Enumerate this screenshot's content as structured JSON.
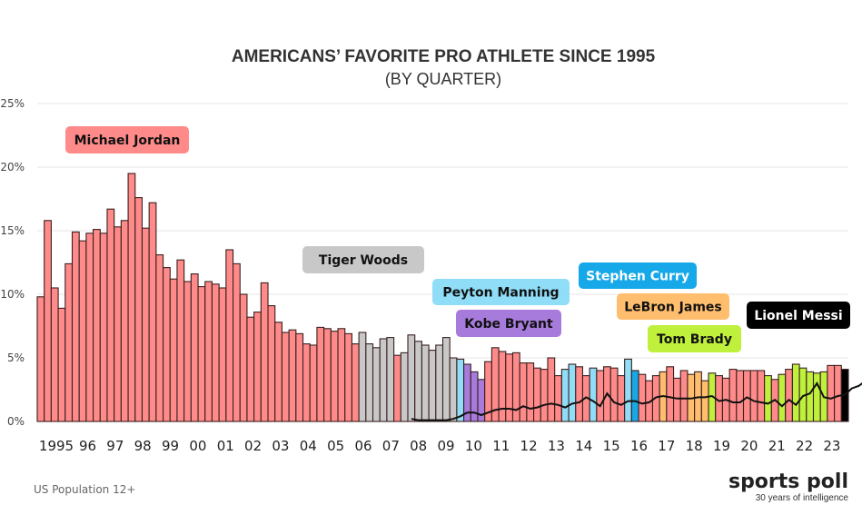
{
  "chart_data": {
    "type": "bar",
    "title": "AMERICANS’ FAVORITE PRO ATHLETE SINCE 1995",
    "subtitle": "(BY QUARTER)",
    "xlabel": "",
    "ylabel": "",
    "ylim": [
      0,
      25
    ],
    "y_ticks": [
      "0%",
      "5%",
      "10%",
      "15%",
      "20%",
      "25%"
    ],
    "y_tick_values": [
      0,
      5,
      10,
      15,
      20,
      25
    ],
    "grid": true,
    "x_tick_labels": [
      "1995",
      "96",
      "97",
      "98",
      "99",
      "00",
      "01",
      "02",
      "03",
      "04",
      "05",
      "06",
      "07",
      "08",
      "09",
      "10",
      "11",
      "12",
      "13",
      "14",
      "15",
      "16",
      "17",
      "18",
      "19",
      "20",
      "21",
      "22",
      "23"
    ],
    "athletes": {
      "MJ": {
        "name": "Michael Jordan",
        "color": "#FF8A8A",
        "text_color": "#111111"
      },
      "TW": {
        "name": "Tiger Woods",
        "color": "#C8C8C8",
        "text_color": "#111111"
      },
      "PM": {
        "name": "Peyton Manning",
        "color": "#8FDDF7",
        "text_color": "#111111"
      },
      "KB": {
        "name": "Kobe Bryant",
        "color": "#A77BDB",
        "text_color": "#111111"
      },
      "SC": {
        "name": "Stephen Curry",
        "color": "#16A8E8",
        "text_color": "#ffffff"
      },
      "LJ": {
        "name": "LeBron James",
        "color": "#FFBE6E",
        "text_color": "#111111"
      },
      "TB": {
        "name": "Tom Brady",
        "color": "#BEF03C",
        "text_color": "#111111"
      },
      "LM": {
        "name": "Lionel Messi",
        "color": "#000000",
        "text_color": "#ffffff"
      }
    },
    "bars": [
      {
        "v": 9.8,
        "a": "MJ"
      },
      {
        "v": 15.8,
        "a": "MJ"
      },
      {
        "v": 10.5,
        "a": "MJ"
      },
      {
        "v": 8.9,
        "a": "MJ"
      },
      {
        "v": 12.4,
        "a": "MJ"
      },
      {
        "v": 14.9,
        "a": "MJ"
      },
      {
        "v": 14.2,
        "a": "MJ"
      },
      {
        "v": 14.8,
        "a": "MJ"
      },
      {
        "v": 15.1,
        "a": "MJ"
      },
      {
        "v": 14.8,
        "a": "MJ"
      },
      {
        "v": 16.7,
        "a": "MJ"
      },
      {
        "v": 15.3,
        "a": "MJ"
      },
      {
        "v": 15.8,
        "a": "MJ"
      },
      {
        "v": 19.5,
        "a": "MJ"
      },
      {
        "v": 17.6,
        "a": "MJ"
      },
      {
        "v": 15.2,
        "a": "MJ"
      },
      {
        "v": 17.2,
        "a": "MJ"
      },
      {
        "v": 13.1,
        "a": "MJ"
      },
      {
        "v": 12.1,
        "a": "MJ"
      },
      {
        "v": 11.2,
        "a": "MJ"
      },
      {
        "v": 12.7,
        "a": "MJ"
      },
      {
        "v": 11.0,
        "a": "MJ"
      },
      {
        "v": 11.6,
        "a": "MJ"
      },
      {
        "v": 10.6,
        "a": "MJ"
      },
      {
        "v": 11.0,
        "a": "MJ"
      },
      {
        "v": 10.8,
        "a": "MJ"
      },
      {
        "v": 10.5,
        "a": "MJ"
      },
      {
        "v": 13.5,
        "a": "MJ"
      },
      {
        "v": 12.4,
        "a": "MJ"
      },
      {
        "v": 10.0,
        "a": "MJ"
      },
      {
        "v": 8.2,
        "a": "MJ"
      },
      {
        "v": 8.6,
        "a": "MJ"
      },
      {
        "v": 10.9,
        "a": "MJ"
      },
      {
        "v": 9.1,
        "a": "MJ"
      },
      {
        "v": 7.8,
        "a": "MJ"
      },
      {
        "v": 7.0,
        "a": "MJ"
      },
      {
        "v": 7.2,
        "a": "MJ"
      },
      {
        "v": 6.9,
        "a": "MJ"
      },
      {
        "v": 6.1,
        "a": "MJ"
      },
      {
        "v": 6.0,
        "a": "MJ"
      },
      {
        "v": 7.4,
        "a": "MJ"
      },
      {
        "v": 7.3,
        "a": "MJ"
      },
      {
        "v": 7.1,
        "a": "MJ"
      },
      {
        "v": 7.3,
        "a": "MJ"
      },
      {
        "v": 6.9,
        "a": "MJ"
      },
      {
        "v": 6.1,
        "a": "MJ"
      },
      {
        "v": 7.0,
        "a": "TW"
      },
      {
        "v": 6.1,
        "a": "TW"
      },
      {
        "v": 5.8,
        "a": "TW"
      },
      {
        "v": 6.5,
        "a": "TW"
      },
      {
        "v": 6.6,
        "a": "TW"
      },
      {
        "v": 5.2,
        "a": "MJ"
      },
      {
        "v": 5.4,
        "a": "TW"
      },
      {
        "v": 6.8,
        "a": "TW"
      },
      {
        "v": 6.3,
        "a": "TW"
      },
      {
        "v": 6.0,
        "a": "TW"
      },
      {
        "v": 5.6,
        "a": "TW"
      },
      {
        "v": 6.0,
        "a": "TW"
      },
      {
        "v": 6.6,
        "a": "TW"
      },
      {
        "v": 5.0,
        "a": "TW"
      },
      {
        "v": 4.9,
        "a": "PM"
      },
      {
        "v": 4.5,
        "a": "KB"
      },
      {
        "v": 3.9,
        "a": "KB"
      },
      {
        "v": 3.3,
        "a": "KB"
      },
      {
        "v": 4.7,
        "a": "MJ"
      },
      {
        "v": 5.8,
        "a": "MJ"
      },
      {
        "v": 5.5,
        "a": "MJ"
      },
      {
        "v": 5.3,
        "a": "MJ"
      },
      {
        "v": 5.4,
        "a": "MJ"
      },
      {
        "v": 4.6,
        "a": "MJ"
      },
      {
        "v": 4.6,
        "a": "MJ"
      },
      {
        "v": 4.2,
        "a": "MJ"
      },
      {
        "v": 4.1,
        "a": "MJ"
      },
      {
        "v": 5.0,
        "a": "MJ"
      },
      {
        "v": 3.6,
        "a": "MJ"
      },
      {
        "v": 4.1,
        "a": "PM"
      },
      {
        "v": 4.5,
        "a": "PM"
      },
      {
        "v": 4.3,
        "a": "MJ"
      },
      {
        "v": 3.6,
        "a": "MJ"
      },
      {
        "v": 4.2,
        "a": "PM"
      },
      {
        "v": 4.0,
        "a": "MJ"
      },
      {
        "v": 4.3,
        "a": "MJ"
      },
      {
        "v": 4.2,
        "a": "MJ"
      },
      {
        "v": 3.6,
        "a": "MJ"
      },
      {
        "v": 4.9,
        "a": "PM"
      },
      {
        "v": 4.0,
        "a": "SC"
      },
      {
        "v": 3.7,
        "a": "MJ"
      },
      {
        "v": 3.2,
        "a": "MJ"
      },
      {
        "v": 3.6,
        "a": "MJ"
      },
      {
        "v": 3.9,
        "a": "LJ"
      },
      {
        "v": 4.3,
        "a": "MJ"
      },
      {
        "v": 3.4,
        "a": "MJ"
      },
      {
        "v": 4.0,
        "a": "MJ"
      },
      {
        "v": 3.7,
        "a": "LJ"
      },
      {
        "v": 3.9,
        "a": "LJ"
      },
      {
        "v": 3.2,
        "a": "LJ"
      },
      {
        "v": 3.8,
        "a": "TB"
      },
      {
        "v": 3.6,
        "a": "MJ"
      },
      {
        "v": 3.4,
        "a": "MJ"
      },
      {
        "v": 4.1,
        "a": "MJ"
      },
      {
        "v": 4.0,
        "a": "MJ"
      },
      {
        "v": 4.0,
        "a": "MJ"
      },
      {
        "v": 4.0,
        "a": "MJ"
      },
      {
        "v": 4.0,
        "a": "MJ"
      },
      {
        "v": 3.6,
        "a": "TB"
      },
      {
        "v": 3.3,
        "a": "MJ"
      },
      {
        "v": 3.7,
        "a": "TB"
      },
      {
        "v": 4.1,
        "a": "MJ"
      },
      {
        "v": 4.5,
        "a": "TB"
      },
      {
        "v": 4.2,
        "a": "TB"
      },
      {
        "v": 3.9,
        "a": "TB"
      },
      {
        "v": 3.8,
        "a": "TB"
      },
      {
        "v": 3.9,
        "a": "TB"
      },
      {
        "v": 4.4,
        "a": "MJ"
      },
      {
        "v": 4.4,
        "a": "MJ"
      },
      {
        "v": 4.1,
        "a": "LM"
      }
    ],
    "trend_line": {
      "description": "black trend line starting around 2009",
      "start_index": 53,
      "values": [
        0.2,
        0.1,
        0.1,
        0.1,
        0.1,
        0.1,
        0.2,
        0.4,
        0.7,
        0.7,
        0.5,
        0.7,
        0.9,
        1.0,
        1.0,
        0.9,
        1.2,
        1.0,
        1.1,
        1.3,
        1.4,
        1.3,
        1.1,
        1.4,
        1.5,
        1.9,
        1.6,
        1.2,
        2.2,
        1.5,
        1.3,
        1.6,
        1.6,
        1.4,
        1.5,
        1.9,
        2.0,
        1.9,
        1.8,
        1.8,
        1.8,
        1.9,
        1.9,
        2.0,
        1.6,
        1.7,
        1.5,
        1.5,
        1.9,
        1.6,
        1.5,
        1.4,
        1.7,
        1.2,
        1.7,
        1.3,
        2.0,
        2.2,
        3.0,
        1.9,
        1.8,
        2.0,
        2.1,
        2.6,
        2.8,
        3.2,
        3.1,
        3.6,
        4.0
      ]
    },
    "annotations": [
      {
        "athlete": "MJ"
      },
      {
        "athlete": "TW"
      },
      {
        "athlete": "PM"
      },
      {
        "athlete": "KB"
      },
      {
        "athlete": "SC"
      },
      {
        "athlete": "LJ"
      },
      {
        "athlete": "TB"
      },
      {
        "athlete": "LM"
      }
    ]
  },
  "footer": {
    "population_note": "US Population 12+",
    "brand_name": "sports poll",
    "brand_tagline": "30 years of intelligence"
  }
}
